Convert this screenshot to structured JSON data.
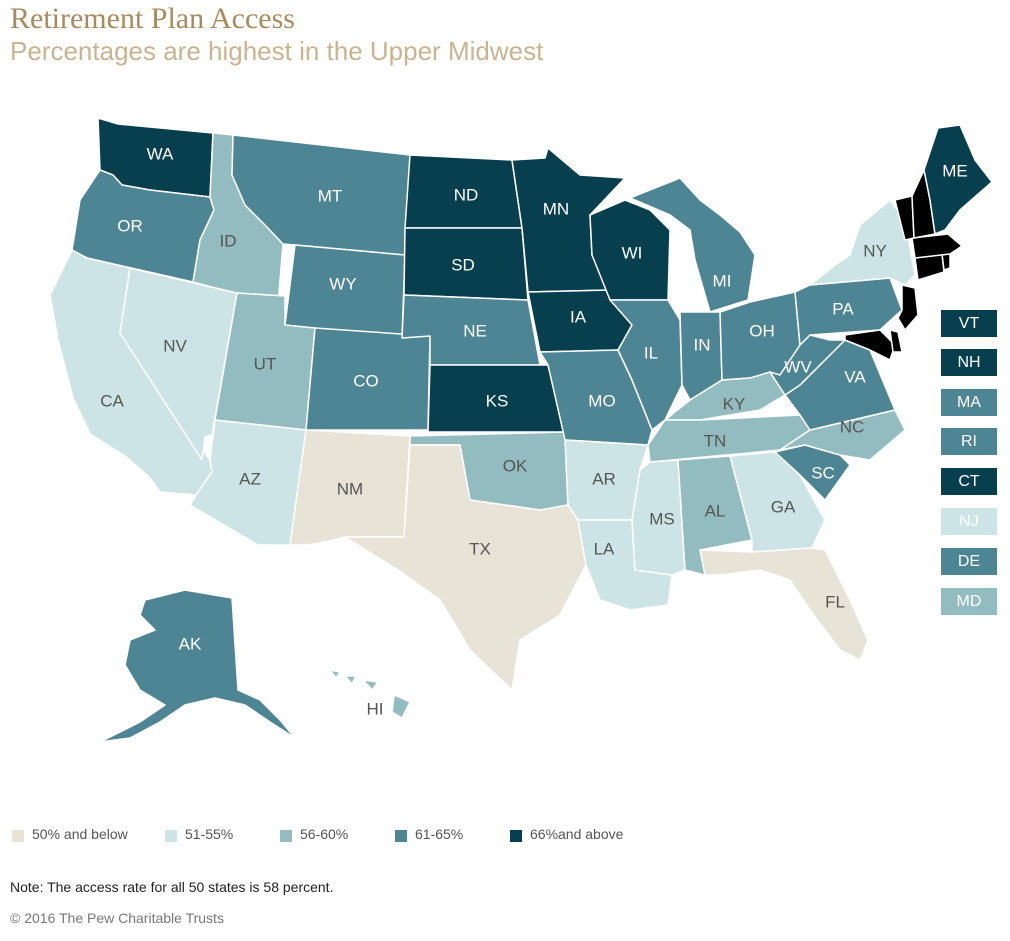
{
  "header": {
    "title": "Retirement Plan Access",
    "subtitle": "Percentages are highest in the Upper Midwest"
  },
  "colors": {
    "c1": "#e7e3d6",
    "c2": "#cde4e6",
    "c3": "#93bcc0",
    "c4": "#4e8594",
    "c5": "#073f4e"
  },
  "legend": [
    {
      "label": "50% and below",
      "color": "#e7e3d6"
    },
    {
      "label": "51-55%",
      "color": "#cde4e6"
    },
    {
      "label": "56-60%",
      "color": "#93bcc0"
    },
    {
      "label": "61-65%",
      "color": "#4e8594"
    },
    {
      "label": "66%and above",
      "color": "#073f4e"
    }
  ],
  "states": {
    "WA": {
      "label": "WA",
      "cls": 5
    },
    "OR": {
      "label": "OR",
      "cls": 4
    },
    "CA": {
      "label": "CA",
      "cls": 2
    },
    "ID": {
      "label": "ID",
      "cls": 3
    },
    "NV": {
      "label": "NV",
      "cls": 2
    },
    "MT": {
      "label": "MT",
      "cls": 4
    },
    "WY": {
      "label": "WY",
      "cls": 4
    },
    "UT": {
      "label": "UT",
      "cls": 3
    },
    "AZ": {
      "label": "AZ",
      "cls": 2
    },
    "CO": {
      "label": "CO",
      "cls": 4
    },
    "NM": {
      "label": "NM",
      "cls": 1
    },
    "ND": {
      "label": "ND",
      "cls": 5
    },
    "SD": {
      "label": "SD",
      "cls": 5
    },
    "NE": {
      "label": "NE",
      "cls": 4
    },
    "KS": {
      "label": "KS",
      "cls": 5
    },
    "OK": {
      "label": "OK",
      "cls": 3
    },
    "TX": {
      "label": "TX",
      "cls": 1
    },
    "MN": {
      "label": "MN",
      "cls": 5
    },
    "IA": {
      "label": "IA",
      "cls": 5
    },
    "MO": {
      "label": "MO",
      "cls": 4
    },
    "AR": {
      "label": "AR",
      "cls": 2
    },
    "LA": {
      "label": "LA",
      "cls": 2
    },
    "WI": {
      "label": "WI",
      "cls": 5
    },
    "IL": {
      "label": "IL",
      "cls": 4
    },
    "MI": {
      "label": "MI",
      "cls": 4
    },
    "IN": {
      "label": "IN",
      "cls": 4
    },
    "OH": {
      "label": "OH",
      "cls": 4
    },
    "KY": {
      "label": "KY",
      "cls": 3
    },
    "TN": {
      "label": "TN",
      "cls": 3
    },
    "MS": {
      "label": "MS",
      "cls": 2
    },
    "AL": {
      "label": "AL",
      "cls": 3
    },
    "GA": {
      "label": "GA",
      "cls": 2
    },
    "FL": {
      "label": "FL",
      "cls": 1
    },
    "SC": {
      "label": "SC",
      "cls": 4
    },
    "NC": {
      "label": "NC",
      "cls": 3
    },
    "VA": {
      "label": "VA",
      "cls": 4
    },
    "WV": {
      "label": "WV",
      "cls": 4
    },
    "PA": {
      "label": "PA",
      "cls": 4
    },
    "NY": {
      "label": "NY",
      "cls": 2
    },
    "ME": {
      "label": "ME",
      "cls": 5
    },
    "AK": {
      "label": "AK",
      "cls": 4
    },
    "HI": {
      "label": "HI",
      "cls": 3
    }
  },
  "small_states": [
    {
      "label": "VT",
      "cls": 5
    },
    {
      "label": "NH",
      "cls": 5
    },
    {
      "label": "MA",
      "cls": 4
    },
    {
      "label": "RI",
      "cls": 4
    },
    {
      "label": "CT",
      "cls": 5
    },
    {
      "label": "NJ",
      "cls": 2
    },
    {
      "label": "DE",
      "cls": 4
    },
    {
      "label": "MD",
      "cls": 3
    }
  ],
  "footer": {
    "note": "Note: The access rate for all 50 states is 58 percent.",
    "copyright": "© 2016 The Pew Charitable Trusts"
  }
}
